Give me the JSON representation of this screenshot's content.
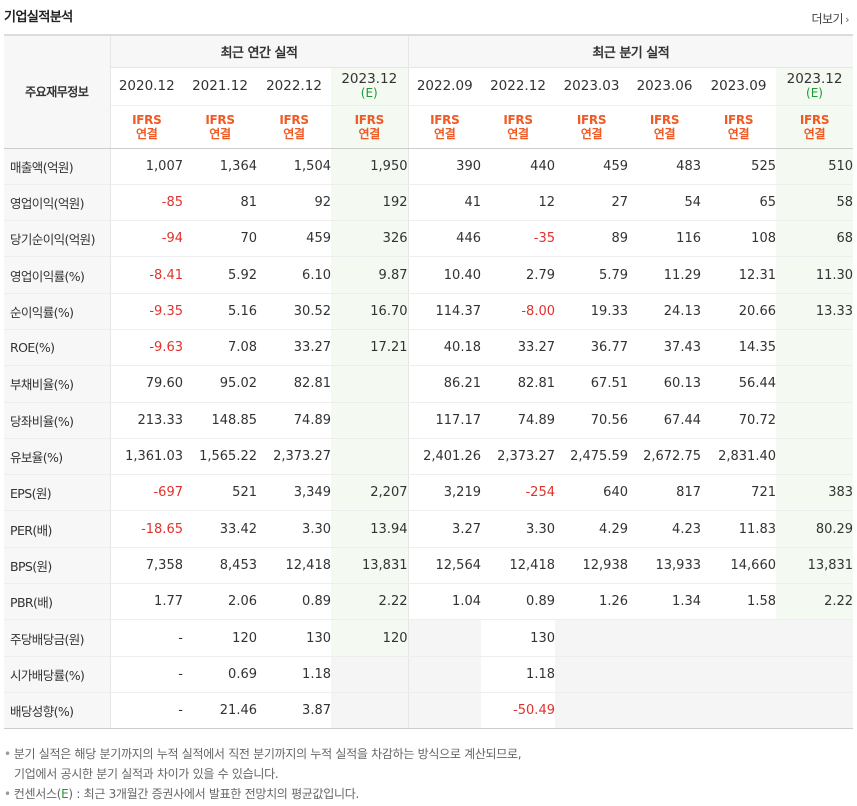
{
  "title": "기업실적분석",
  "more_label": "더보기",
  "header": {
    "side_label": "주요재무정보",
    "group_annual": "최근 연간 실적",
    "group_quarter": "최근 분기 실적",
    "annual_periods": [
      {
        "period": "2020.12",
        "est": ""
      },
      {
        "period": "2021.12",
        "est": ""
      },
      {
        "period": "2022.12",
        "est": ""
      },
      {
        "period": "2023.12",
        "est": "(E)"
      }
    ],
    "quarter_periods": [
      {
        "period": "2022.09",
        "est": ""
      },
      {
        "period": "2022.12",
        "est": ""
      },
      {
        "period": "2023.03",
        "est": ""
      },
      {
        "period": "2023.06",
        "est": ""
      },
      {
        "period": "2023.09",
        "est": ""
      },
      {
        "period": "2023.12",
        "est": "(E)"
      }
    ],
    "basis_top": "IFRS",
    "basis_bottom": "연결"
  },
  "rows": [
    {
      "label": "매출액(억원)",
      "values": [
        "1,007",
        "1,364",
        "1,504",
        "1,950",
        "390",
        "440",
        "459",
        "483",
        "525",
        "510"
      ]
    },
    {
      "label": "영업이익(억원)",
      "values": [
        "-85",
        "81",
        "92",
        "192",
        "41",
        "12",
        "27",
        "54",
        "65",
        "58"
      ]
    },
    {
      "label": "당기순이익(억원)",
      "values": [
        "-94",
        "70",
        "459",
        "326",
        "446",
        "-35",
        "89",
        "116",
        "108",
        "68"
      ]
    },
    {
      "label": "영업이익률(%)",
      "values": [
        "-8.41",
        "5.92",
        "6.10",
        "9.87",
        "10.40",
        "2.79",
        "5.79",
        "11.29",
        "12.31",
        "11.30"
      ]
    },
    {
      "label": "순이익률(%)",
      "values": [
        "-9.35",
        "5.16",
        "30.52",
        "16.70",
        "114.37",
        "-8.00",
        "19.33",
        "24.13",
        "20.66",
        "13.33"
      ]
    },
    {
      "label": "ROE(%)",
      "values": [
        "-9.63",
        "7.08",
        "33.27",
        "17.21",
        "40.18",
        "33.27",
        "36.77",
        "37.43",
        "14.35",
        ""
      ]
    },
    {
      "label": "부채비율(%)",
      "values": [
        "79.60",
        "95.02",
        "82.81",
        "",
        "86.21",
        "82.81",
        "67.51",
        "60.13",
        "56.44",
        ""
      ]
    },
    {
      "label": "당좌비율(%)",
      "values": [
        "213.33",
        "148.85",
        "74.89",
        "",
        "117.17",
        "74.89",
        "70.56",
        "67.44",
        "70.72",
        ""
      ]
    },
    {
      "label": "유보율(%)",
      "values": [
        "1,361.03",
        "1,565.22",
        "2,373.27",
        "",
        "2,401.26",
        "2,373.27",
        "2,475.59",
        "2,672.75",
        "2,831.40",
        ""
      ]
    },
    {
      "label": "EPS(원)",
      "values": [
        "-697",
        "521",
        "3,349",
        "2,207",
        "3,219",
        "-254",
        "640",
        "817",
        "721",
        "383"
      ]
    },
    {
      "label": "PER(배)",
      "values": [
        "-18.65",
        "33.42",
        "3.30",
        "13.94",
        "3.27",
        "3.30",
        "4.29",
        "4.23",
        "11.83",
        "80.29"
      ]
    },
    {
      "label": "BPS(원)",
      "values": [
        "7,358",
        "8,453",
        "12,418",
        "13,831",
        "12,564",
        "12,418",
        "12,938",
        "13,933",
        "14,660",
        "13,831"
      ]
    },
    {
      "label": "PBR(배)",
      "values": [
        "1.77",
        "2.06",
        "0.89",
        "2.22",
        "1.04",
        "0.89",
        "1.26",
        "1.34",
        "1.58",
        "2.22"
      ]
    },
    {
      "label": "주당배당금(원)",
      "values": [
        "-",
        "120",
        "130",
        "120",
        "",
        "130",
        "",
        "",
        "",
        ""
      ]
    },
    {
      "label": "시가배당률(%)",
      "values": [
        "-",
        "0.69",
        "1.18",
        "",
        "",
        "1.18",
        "",
        "",
        "",
        ""
      ]
    },
    {
      "label": "배당성향(%)",
      "values": [
        "-",
        "21.46",
        "3.87",
        "",
        "",
        "-50.49",
        "",
        "",
        "",
        ""
      ]
    }
  ],
  "notes": {
    "line1": "분기 실적은 해당 분기까지의 누적 실적에서 직전 분기까지의 누적 실적을 차감하는 방식으로 계산되므로,",
    "line2": "기업에서 공시한 분기 실적과 차이가 있을 수 있습니다.",
    "line3_pre": "컨센서스(",
    "line3_e": "E",
    "line3_post": ") : 최근 3개월간 증권사에서 발표한 전망치의 평균값입니다."
  },
  "colors": {
    "negative": "#e0322c",
    "basis": "#f05a24",
    "estimate": "#1d9b33",
    "estimate_bg": "#f4f9f2"
  }
}
